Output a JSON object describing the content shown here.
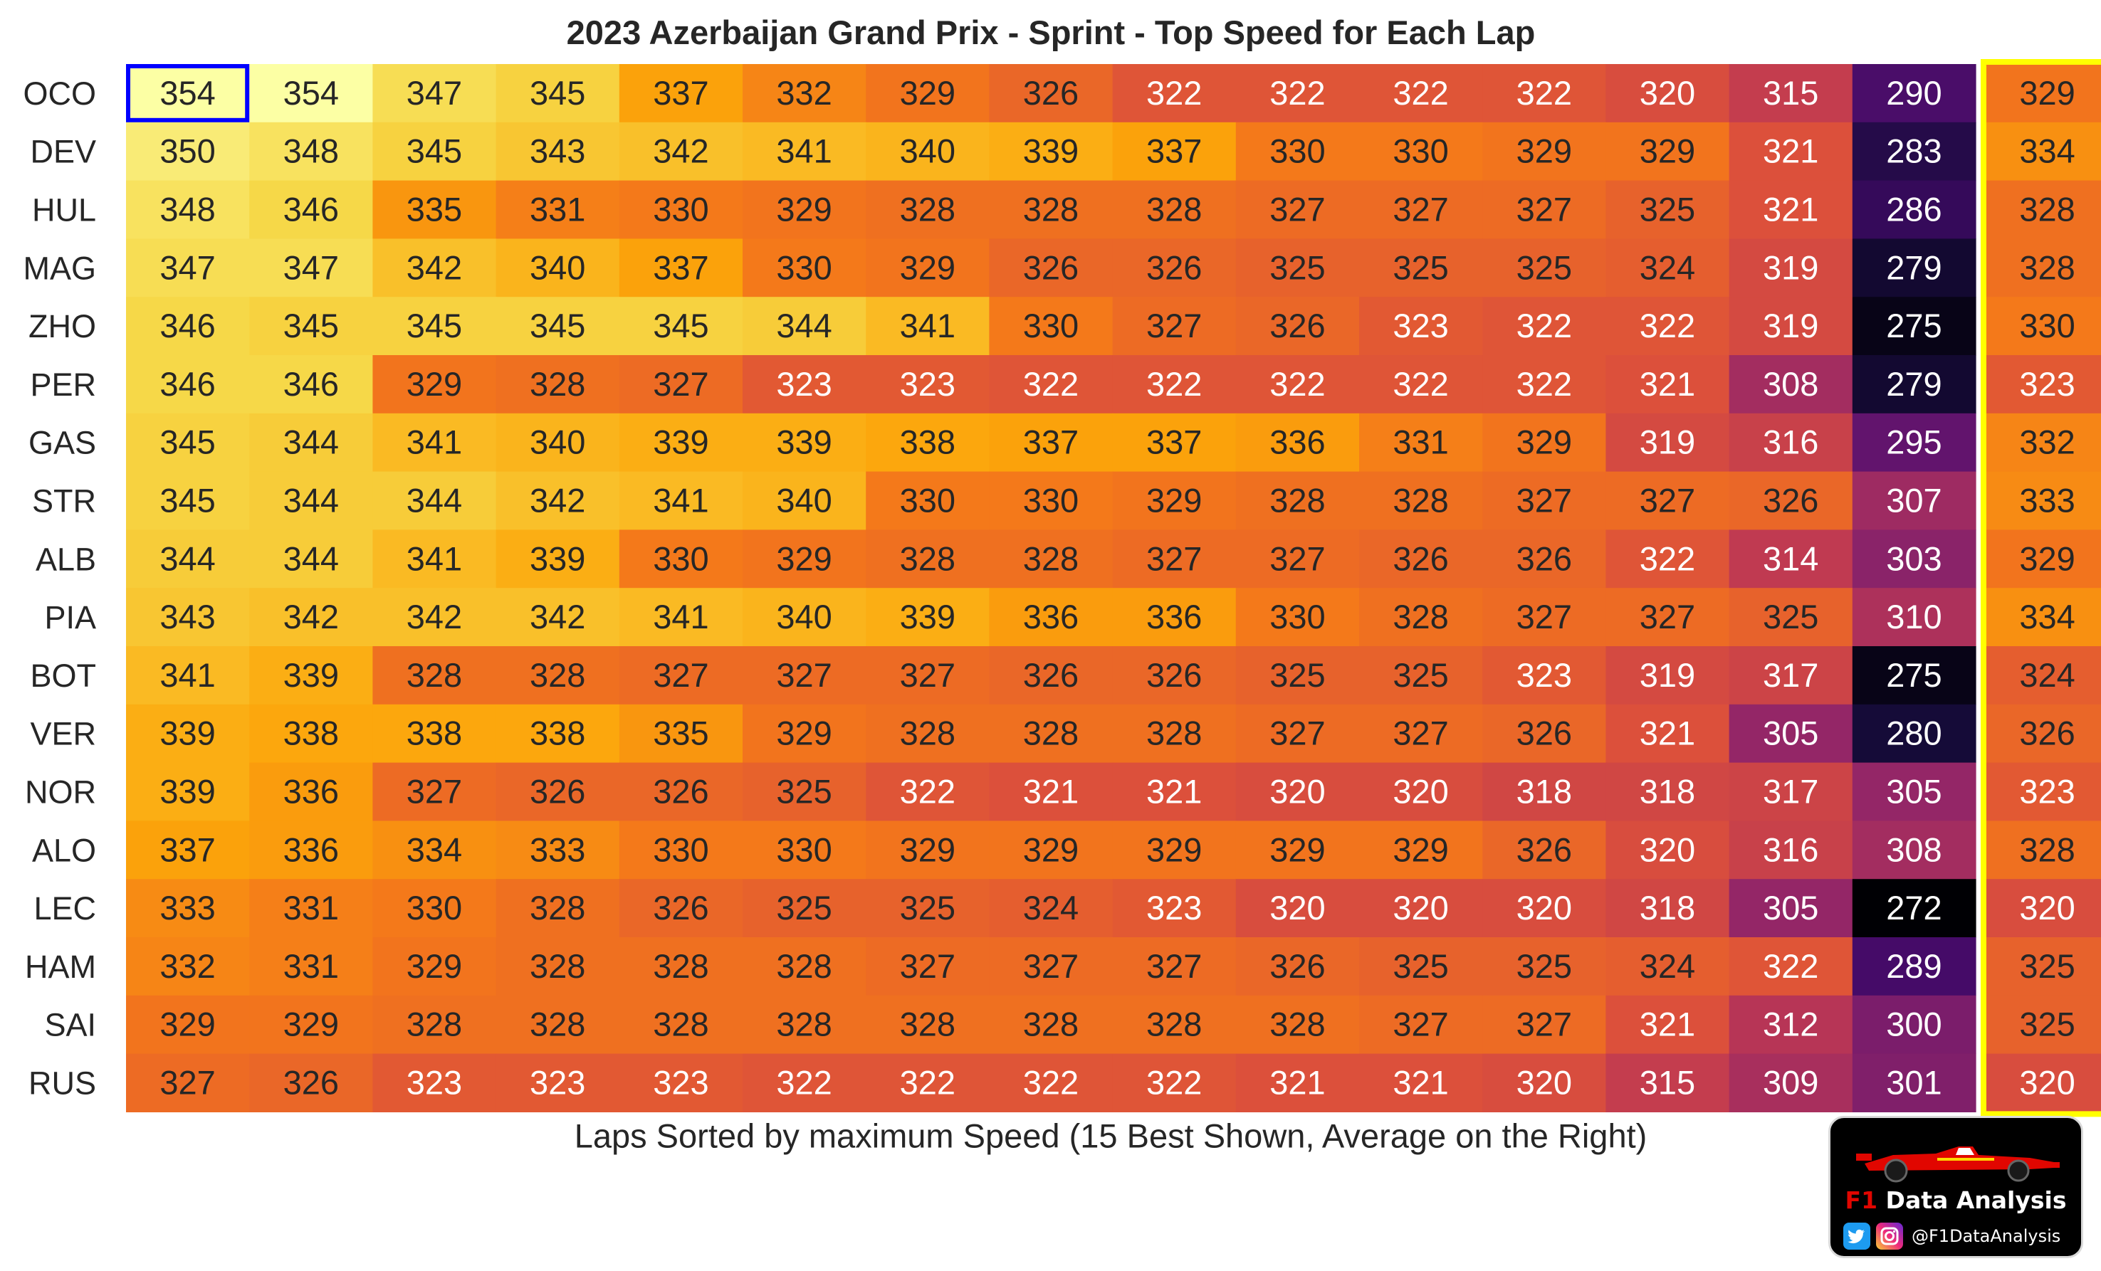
{
  "chart_data": {
    "type": "heatmap",
    "title": "2023 Azerbaijan Grand Prix - Sprint - Top Speed for Each Lap",
    "xlabel": "Laps Sorted by maximum Speed (15 Best Shown, Average on the Right)",
    "ylabel": "",
    "colormap": "inferno",
    "value_range": [
      272,
      354
    ],
    "rows": [
      "OCO",
      "DEV",
      "HUL",
      "MAG",
      "ZHO",
      "PER",
      "GAS",
      "STR",
      "ALB",
      "PIA",
      "BOT",
      "VER",
      "NOR",
      "ALO",
      "LEC",
      "HAM",
      "SAI",
      "RUS"
    ],
    "values": [
      [
        354,
        354,
        347,
        345,
        337,
        332,
        329,
        326,
        322,
        322,
        322,
        322,
        320,
        315,
        290
      ],
      [
        350,
        348,
        345,
        343,
        342,
        341,
        340,
        339,
        337,
        330,
        330,
        329,
        329,
        321,
        283
      ],
      [
        348,
        346,
        335,
        331,
        330,
        329,
        328,
        328,
        328,
        327,
        327,
        327,
        325,
        321,
        286
      ],
      [
        347,
        347,
        342,
        340,
        337,
        330,
        329,
        326,
        326,
        325,
        325,
        325,
        324,
        319,
        279
      ],
      [
        346,
        345,
        345,
        345,
        345,
        344,
        341,
        330,
        327,
        326,
        323,
        322,
        322,
        319,
        275
      ],
      [
        346,
        346,
        329,
        328,
        327,
        323,
        323,
        322,
        322,
        322,
        322,
        322,
        321,
        308,
        279
      ],
      [
        345,
        344,
        341,
        340,
        339,
        339,
        338,
        337,
        337,
        336,
        331,
        329,
        319,
        316,
        295
      ],
      [
        345,
        344,
        344,
        342,
        341,
        340,
        330,
        330,
        329,
        328,
        328,
        327,
        327,
        326,
        307
      ],
      [
        344,
        344,
        341,
        339,
        330,
        329,
        328,
        328,
        327,
        327,
        326,
        326,
        322,
        314,
        303
      ],
      [
        343,
        342,
        342,
        342,
        341,
        340,
        339,
        336,
        336,
        330,
        328,
        327,
        327,
        325,
        310
      ],
      [
        341,
        339,
        328,
        328,
        327,
        327,
        327,
        326,
        326,
        325,
        325,
        323,
        319,
        317,
        275
      ],
      [
        339,
        338,
        338,
        338,
        335,
        329,
        328,
        328,
        328,
        327,
        327,
        326,
        321,
        305,
        280
      ],
      [
        339,
        336,
        327,
        326,
        326,
        325,
        322,
        321,
        321,
        320,
        320,
        318,
        318,
        317,
        305
      ],
      [
        337,
        336,
        334,
        333,
        330,
        330,
        329,
        329,
        329,
        329,
        329,
        326,
        320,
        316,
        308
      ],
      [
        333,
        331,
        330,
        328,
        326,
        325,
        325,
        324,
        323,
        320,
        320,
        320,
        318,
        305,
        272
      ],
      [
        332,
        331,
        329,
        328,
        328,
        328,
        327,
        327,
        327,
        326,
        325,
        325,
        324,
        322,
        289
      ],
      [
        329,
        329,
        328,
        328,
        328,
        328,
        328,
        328,
        328,
        328,
        327,
        327,
        321,
        312,
        300
      ],
      [
        327,
        326,
        323,
        323,
        323,
        322,
        322,
        322,
        322,
        321,
        321,
        320,
        315,
        309,
        301
      ]
    ],
    "averages": [
      329,
      334,
      328,
      328,
      330,
      323,
      332,
      333,
      329,
      334,
      324,
      326,
      323,
      328,
      320,
      325,
      325,
      320
    ],
    "highlight_cell": {
      "row": 0,
      "col": 0,
      "color": "#0000ff"
    },
    "highlight_column_color": "#ffff00",
    "legend": "none",
    "grid": false
  },
  "logo": {
    "prefix": "F1",
    "name": "Data Analysis",
    "handle": "@F1DataAnalysis",
    "icons": [
      "f1-car-icon",
      "twitter-icon",
      "instagram-icon"
    ]
  }
}
